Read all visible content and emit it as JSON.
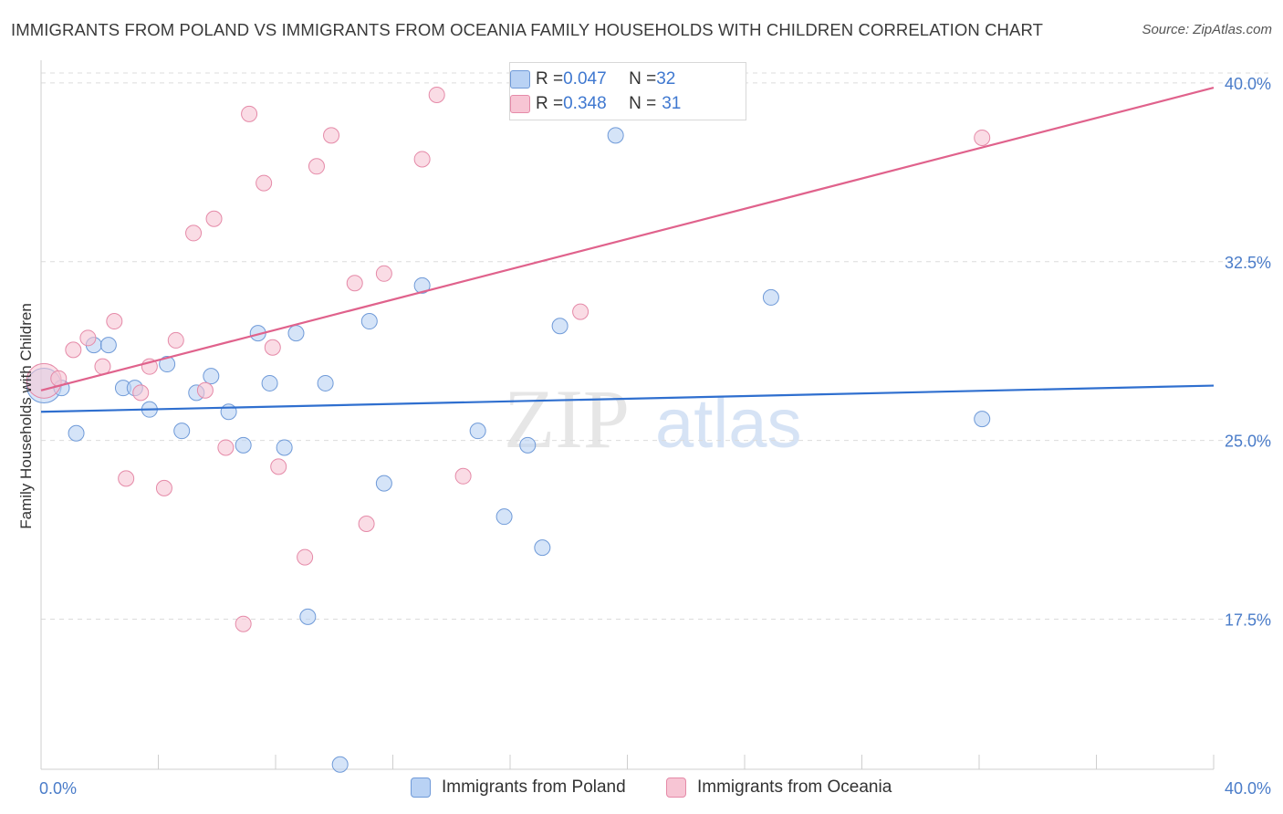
{
  "title": "IMMIGRANTS FROM POLAND VS IMMIGRANTS FROM OCEANIA FAMILY HOUSEHOLDS WITH CHILDREN CORRELATION CHART",
  "source": "Source: ZipAtlas.com",
  "watermark": {
    "zip": "ZIP",
    "atlas": "atlas"
  },
  "colors": {
    "blue_fill": "#b9d2f4",
    "blue_stroke": "#6f9ad8",
    "blue_line": "#2f6fcf",
    "pink_fill": "#f7c5d4",
    "pink_stroke": "#e58aa8",
    "pink_line": "#e0628c",
    "tick_text": "#4a7cc9",
    "grid": "#dcdcdc"
  },
  "legend_top": [
    {
      "r_label": "R = ",
      "r_value": "0.047",
      "n_label": "N = ",
      "n_value": "32"
    },
    {
      "r_label": "R = ",
      "r_value": "0.348",
      "n_label": "N = ",
      "n_value": "31"
    }
  ],
  "legend_bottom": [
    "Immigrants from Poland",
    "Immigrants from Oceania"
  ],
  "chart_data": {
    "type": "scatter",
    "title": "IMMIGRANTS FROM POLAND VS IMMIGRANTS FROM OCEANIA FAMILY HOUSEHOLDS WITH CHILDREN CORRELATION CHART",
    "xlabel": "",
    "ylabel": "Family Households with Children",
    "xlim": [
      0,
      40
    ],
    "ylim": [
      11.2,
      40.8
    ],
    "x_tick_labels": [
      "0.0%",
      "40.0%"
    ],
    "y_ticks": [
      17.5,
      25.0,
      32.5,
      40.0
    ],
    "y_tick_labels": [
      "17.5%",
      "25.0%",
      "32.5%",
      "40.0%"
    ],
    "grid": true,
    "legend_placement": "top-center",
    "series": [
      {
        "name": "Immigrants from Poland",
        "color": "#6f9ad8",
        "R": 0.047,
        "N": 32,
        "trend": {
          "x": [
            0,
            40
          ],
          "y": [
            26.2,
            27.3
          ]
        },
        "points": [
          {
            "x": 0.1,
            "y": 27.3,
            "big": true
          },
          {
            "x": 0.7,
            "y": 27.2
          },
          {
            "x": 1.2,
            "y": 25.3
          },
          {
            "x": 1.8,
            "y": 29.0
          },
          {
            "x": 2.3,
            "y": 29.0
          },
          {
            "x": 2.8,
            "y": 27.2
          },
          {
            "x": 3.2,
            "y": 27.2
          },
          {
            "x": 3.7,
            "y": 26.3
          },
          {
            "x": 4.3,
            "y": 28.2
          },
          {
            "x": 4.8,
            "y": 25.4
          },
          {
            "x": 5.3,
            "y": 27.0
          },
          {
            "x": 5.8,
            "y": 27.7
          },
          {
            "x": 6.4,
            "y": 26.2
          },
          {
            "x": 6.9,
            "y": 24.8
          },
          {
            "x": 7.4,
            "y": 29.5
          },
          {
            "x": 7.8,
            "y": 27.4
          },
          {
            "x": 8.3,
            "y": 24.7
          },
          {
            "x": 8.7,
            "y": 29.5
          },
          {
            "x": 9.1,
            "y": 17.6
          },
          {
            "x": 9.7,
            "y": 27.4
          },
          {
            "x": 10.2,
            "y": 11.4
          },
          {
            "x": 11.2,
            "y": 30.0
          },
          {
            "x": 11.7,
            "y": 23.2
          },
          {
            "x": 13.0,
            "y": 31.5
          },
          {
            "x": 14.9,
            "y": 25.4
          },
          {
            "x": 15.8,
            "y": 21.8
          },
          {
            "x": 16.6,
            "y": 24.8
          },
          {
            "x": 17.1,
            "y": 20.5
          },
          {
            "x": 17.7,
            "y": 29.8
          },
          {
            "x": 19.6,
            "y": 37.8
          },
          {
            "x": 24.9,
            "y": 31.0
          },
          {
            "x": 32.1,
            "y": 25.9
          }
        ]
      },
      {
        "name": "Immigrants from Oceania",
        "color": "#e58aa8",
        "R": 0.348,
        "N": 31,
        "trend": {
          "x": [
            0,
            40
          ],
          "y": [
            27.1,
            39.8
          ]
        },
        "points": [
          {
            "x": 0.1,
            "y": 27.5,
            "big": true
          },
          {
            "x": 0.6,
            "y": 27.6
          },
          {
            "x": 1.1,
            "y": 28.8
          },
          {
            "x": 1.6,
            "y": 29.3
          },
          {
            "x": 2.1,
            "y": 28.1
          },
          {
            "x": 2.5,
            "y": 30.0
          },
          {
            "x": 2.9,
            "y": 23.4
          },
          {
            "x": 3.4,
            "y": 27.0
          },
          {
            "x": 3.7,
            "y": 28.1
          },
          {
            "x": 4.2,
            "y": 23.0
          },
          {
            "x": 4.6,
            "y": 29.2
          },
          {
            "x": 5.2,
            "y": 33.7
          },
          {
            "x": 5.6,
            "y": 27.1
          },
          {
            "x": 5.9,
            "y": 34.3
          },
          {
            "x": 6.3,
            "y": 24.7
          },
          {
            "x": 6.9,
            "y": 17.3
          },
          {
            "x": 7.1,
            "y": 38.7
          },
          {
            "x": 7.6,
            "y": 35.8
          },
          {
            "x": 7.9,
            "y": 28.9
          },
          {
            "x": 8.1,
            "y": 23.9
          },
          {
            "x": 9.0,
            "y": 20.1
          },
          {
            "x": 9.4,
            "y": 36.5
          },
          {
            "x": 9.9,
            "y": 37.8
          },
          {
            "x": 10.7,
            "y": 31.6
          },
          {
            "x": 11.1,
            "y": 21.5
          },
          {
            "x": 11.7,
            "y": 32.0
          },
          {
            "x": 13.0,
            "y": 36.8
          },
          {
            "x": 13.5,
            "y": 39.5
          },
          {
            "x": 14.4,
            "y": 23.5
          },
          {
            "x": 18.4,
            "y": 30.4
          },
          {
            "x": 32.1,
            "y": 37.7
          }
        ]
      }
    ]
  }
}
